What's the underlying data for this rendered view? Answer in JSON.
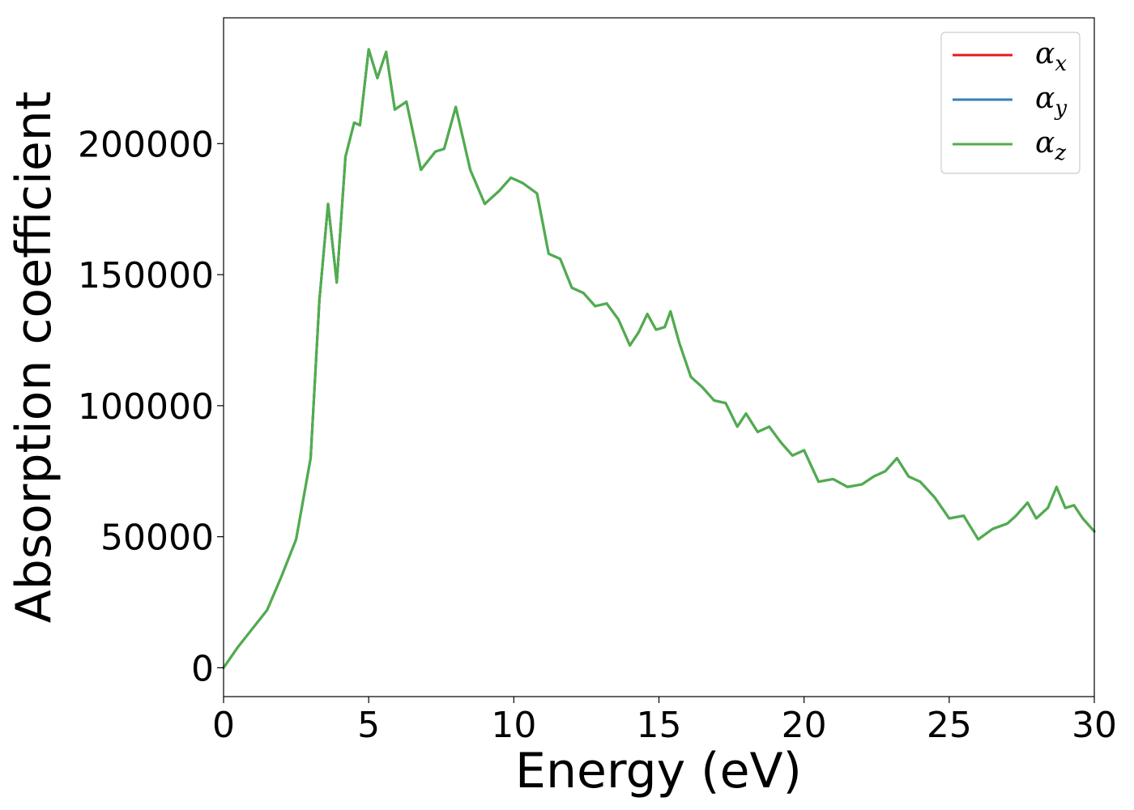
{
  "chart_data": {
    "type": "line",
    "title": "",
    "xlabel": "Energy (eV)",
    "ylabel": "Absorption coefficient",
    "xlim": [
      0,
      30
    ],
    "ylim": [
      -11000,
      248000
    ],
    "xticks": [
      0,
      5,
      10,
      15,
      20,
      25,
      30
    ],
    "yticks": [
      0,
      50000,
      100000,
      150000,
      200000
    ],
    "grid": false,
    "legend_position": "top-right",
    "series": [
      {
        "name": "α",
        "subscript": "x",
        "color": "#e41a1c",
        "x": [
          0,
          0.5,
          1.0,
          1.5,
          2.0,
          2.5,
          3.0,
          3.3,
          3.6,
          3.9,
          4.2,
          4.5,
          4.7,
          5.0,
          5.3,
          5.6,
          5.9,
          6.3,
          6.8,
          7.3,
          7.6,
          8.0,
          8.5,
          9.0,
          9.5,
          9.9,
          10.3,
          10.8,
          11.2,
          11.6,
          12.0,
          12.4,
          12.8,
          13.2,
          13.6,
          14.0,
          14.3,
          14.6,
          14.9,
          15.2,
          15.4,
          15.7,
          16.1,
          16.5,
          16.9,
          17.3,
          17.7,
          18.0,
          18.4,
          18.8,
          19.2,
          19.6,
          20.0,
          20.5,
          21.0,
          21.5,
          22.0,
          22.4,
          22.8,
          23.2,
          23.6,
          24.0,
          24.5,
          25.0,
          25.5,
          26.0,
          26.5,
          27.0,
          27.3,
          27.7,
          28.0,
          28.4,
          28.7,
          29.0,
          29.3,
          29.6,
          30.0
        ],
        "values": [
          0,
          8000,
          15000,
          22000,
          35000,
          49000,
          80000,
          140000,
          177000,
          147000,
          195000,
          208000,
          207000,
          236000,
          225000,
          235000,
          213000,
          216000,
          190000,
          197000,
          198000,
          214000,
          190000,
          177000,
          182000,
          187000,
          185000,
          181000,
          158000,
          156000,
          145000,
          143000,
          138000,
          139000,
          133000,
          123000,
          128000,
          135000,
          129000,
          130000,
          136000,
          124000,
          111000,
          107000,
          102000,
          101000,
          92000,
          97000,
          90000,
          92000,
          86000,
          81000,
          83000,
          71000,
          72000,
          69000,
          70000,
          73000,
          75000,
          80000,
          73000,
          71000,
          65000,
          57000,
          58000,
          49000,
          53000,
          55000,
          58000,
          63000,
          57000,
          61000,
          69000,
          61000,
          62000,
          57000,
          52000
        ]
      },
      {
        "name": "α",
        "subscript": "y",
        "color": "#377eb8",
        "x": [
          0,
          0.5,
          1.0,
          1.5,
          2.0,
          2.5,
          3.0,
          3.3,
          3.6,
          3.9,
          4.2,
          4.5,
          4.7,
          5.0,
          5.3,
          5.6,
          5.9,
          6.3,
          6.8,
          7.3,
          7.6,
          8.0,
          8.5,
          9.0,
          9.5,
          9.9,
          10.3,
          10.8,
          11.2,
          11.6,
          12.0,
          12.4,
          12.8,
          13.2,
          13.6,
          14.0,
          14.3,
          14.6,
          14.9,
          15.2,
          15.4,
          15.7,
          16.1,
          16.5,
          16.9,
          17.3,
          17.7,
          18.0,
          18.4,
          18.8,
          19.2,
          19.6,
          20.0,
          20.5,
          21.0,
          21.5,
          22.0,
          22.4,
          22.8,
          23.2,
          23.6,
          24.0,
          24.5,
          25.0,
          25.5,
          26.0,
          26.5,
          27.0,
          27.3,
          27.7,
          28.0,
          28.4,
          28.7,
          29.0,
          29.3,
          29.6,
          30.0
        ],
        "values": [
          0,
          8000,
          15000,
          22000,
          35000,
          49000,
          80000,
          140000,
          177000,
          147000,
          195000,
          208000,
          207000,
          236000,
          225000,
          235000,
          213000,
          216000,
          190000,
          197000,
          198000,
          214000,
          190000,
          177000,
          182000,
          187000,
          185000,
          181000,
          158000,
          156000,
          145000,
          143000,
          138000,
          139000,
          133000,
          123000,
          128000,
          135000,
          129000,
          130000,
          136000,
          124000,
          111000,
          107000,
          102000,
          101000,
          92000,
          97000,
          90000,
          92000,
          86000,
          81000,
          83000,
          71000,
          72000,
          69000,
          70000,
          73000,
          75000,
          80000,
          73000,
          71000,
          65000,
          57000,
          58000,
          49000,
          53000,
          55000,
          58000,
          63000,
          57000,
          61000,
          69000,
          61000,
          62000,
          57000,
          52000
        ]
      },
      {
        "name": "α",
        "subscript": "z",
        "color": "#4daf4a",
        "x": [
          0,
          0.5,
          1.0,
          1.5,
          2.0,
          2.5,
          3.0,
          3.3,
          3.6,
          3.9,
          4.2,
          4.5,
          4.7,
          5.0,
          5.3,
          5.6,
          5.9,
          6.3,
          6.8,
          7.3,
          7.6,
          8.0,
          8.5,
          9.0,
          9.5,
          9.9,
          10.3,
          10.8,
          11.2,
          11.6,
          12.0,
          12.4,
          12.8,
          13.2,
          13.6,
          14.0,
          14.3,
          14.6,
          14.9,
          15.2,
          15.4,
          15.7,
          16.1,
          16.5,
          16.9,
          17.3,
          17.7,
          18.0,
          18.4,
          18.8,
          19.2,
          19.6,
          20.0,
          20.5,
          21.0,
          21.5,
          22.0,
          22.4,
          22.8,
          23.2,
          23.6,
          24.0,
          24.5,
          25.0,
          25.5,
          26.0,
          26.5,
          27.0,
          27.3,
          27.7,
          28.0,
          28.4,
          28.7,
          29.0,
          29.3,
          29.6,
          30.0
        ],
        "values": [
          0,
          8000,
          15000,
          22000,
          35000,
          49000,
          80000,
          140000,
          177000,
          147000,
          195000,
          208000,
          207000,
          236000,
          225000,
          235000,
          213000,
          216000,
          190000,
          197000,
          198000,
          214000,
          190000,
          177000,
          182000,
          187000,
          185000,
          181000,
          158000,
          156000,
          145000,
          143000,
          138000,
          139000,
          133000,
          123000,
          128000,
          135000,
          129000,
          130000,
          136000,
          124000,
          111000,
          107000,
          102000,
          101000,
          92000,
          97000,
          90000,
          92000,
          86000,
          81000,
          83000,
          71000,
          72000,
          69000,
          70000,
          73000,
          75000,
          80000,
          73000,
          71000,
          65000,
          57000,
          58000,
          49000,
          53000,
          55000,
          58000,
          63000,
          57000,
          61000,
          69000,
          61000,
          62000,
          57000,
          52000
        ]
      }
    ]
  }
}
